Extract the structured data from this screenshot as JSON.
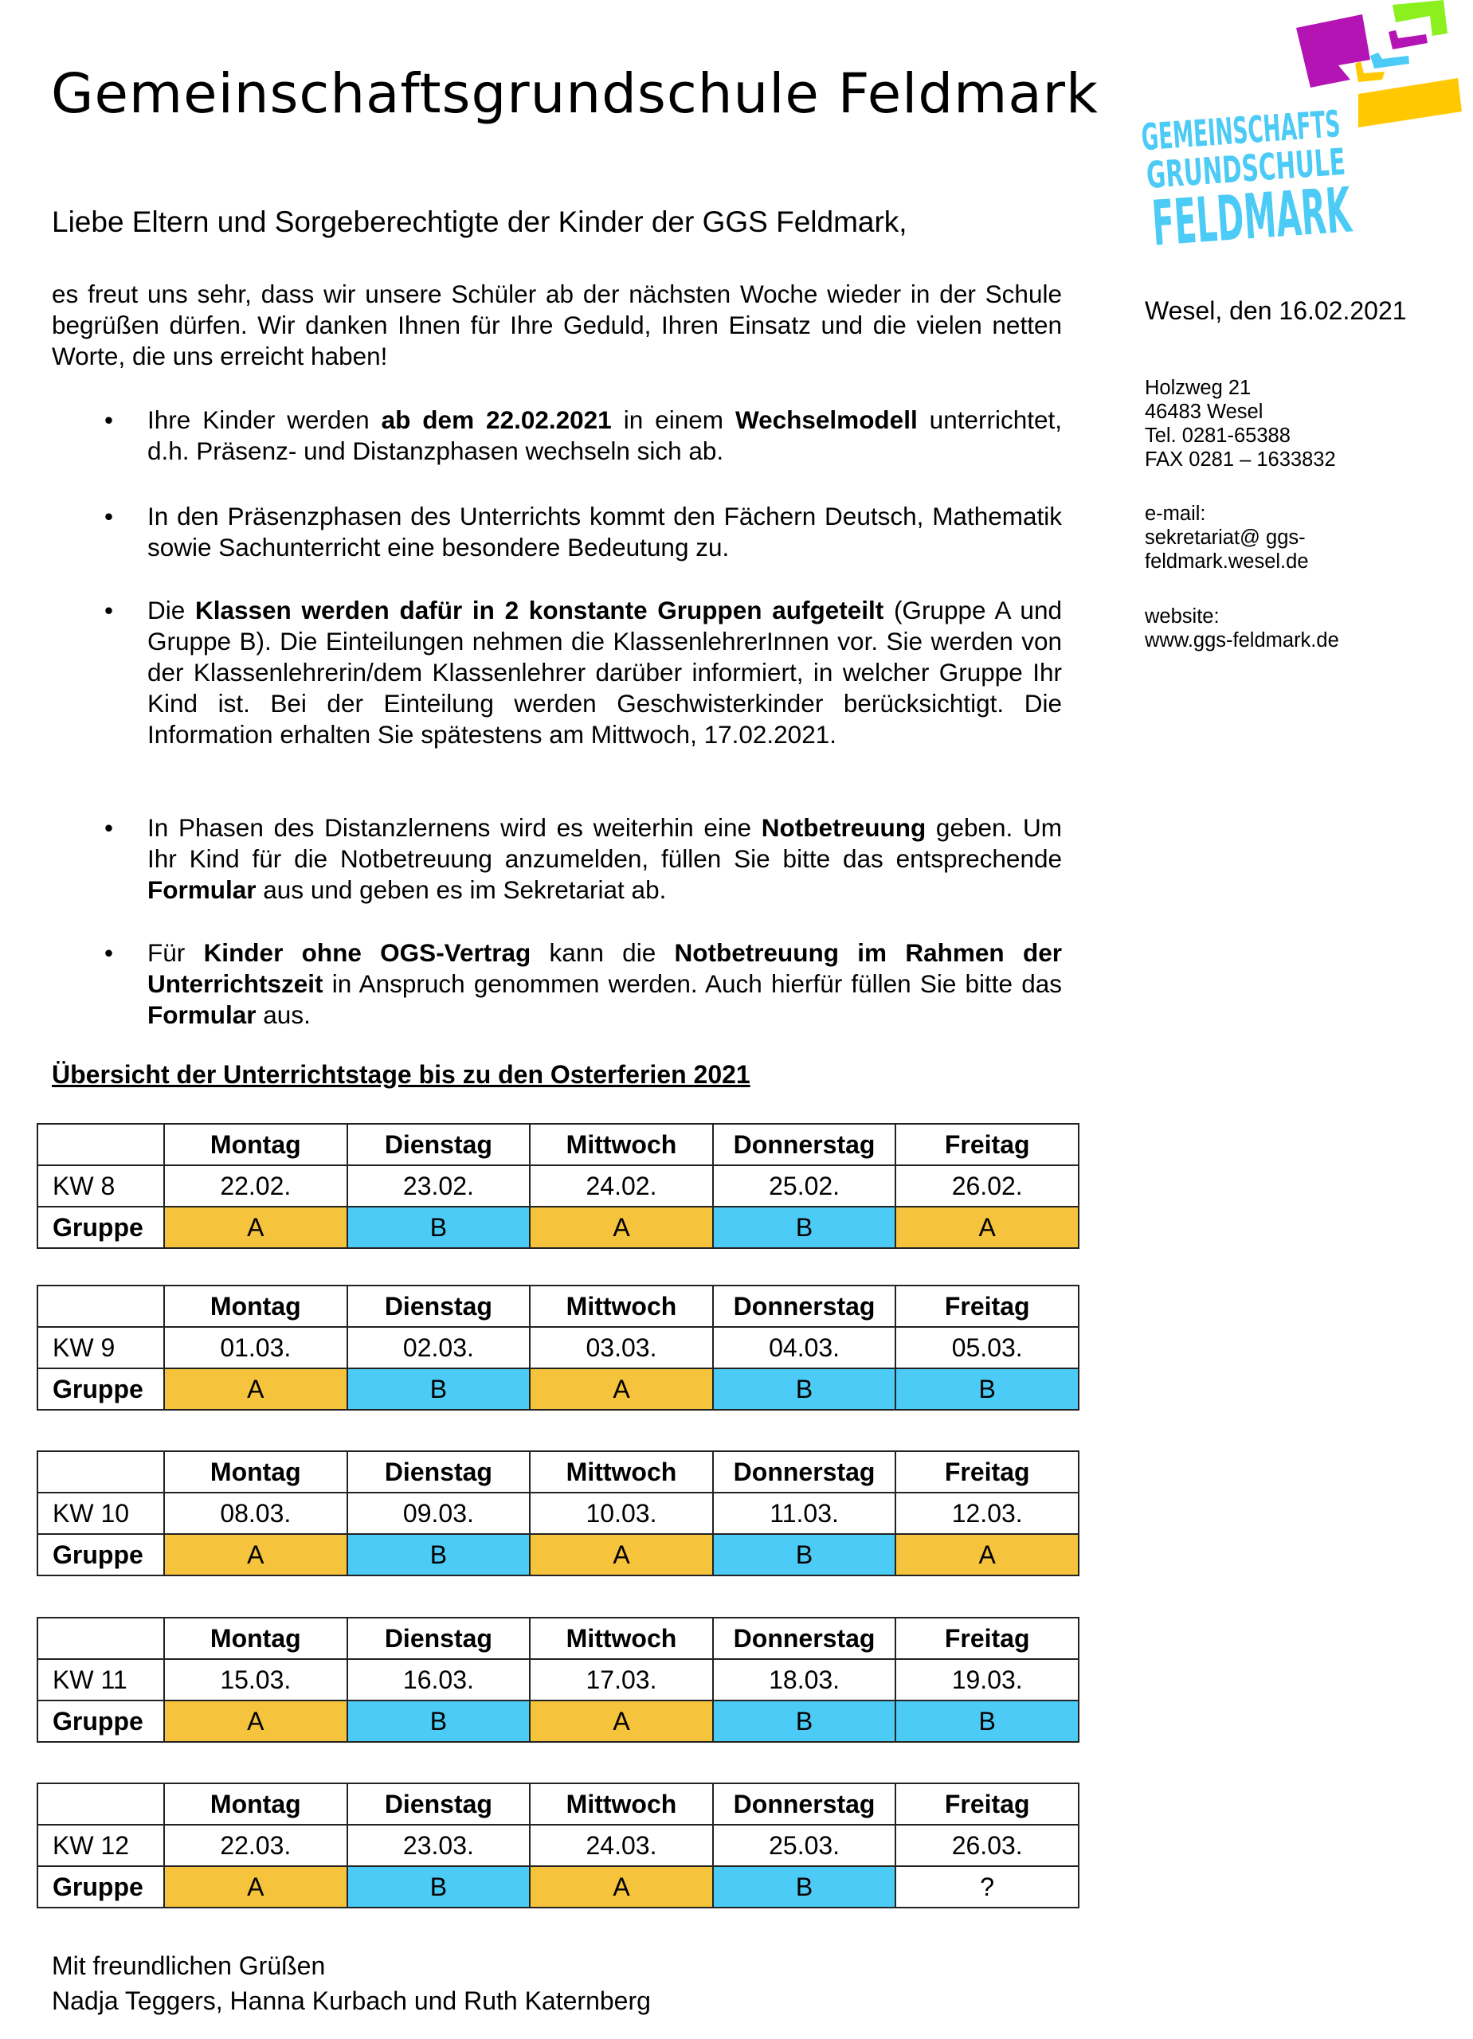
{
  "header": {
    "title": "Gemeinschaftsgrundschule Feldmark",
    "logo": {
      "lines": [
        "GEMEINSCHAFTS",
        "GRUNDSCHULE",
        "FELDMARK"
      ],
      "colors": {
        "text": "#4BCBF5",
        "purple": "#B414B4",
        "green": "#8CF01E",
        "yellow": "#FFC800"
      }
    }
  },
  "greeting": "Liebe Eltern und Sorgeberechtigte der Kinder der GGS Feldmark,",
  "intro": "es freut uns sehr, dass wir unsere Schüler ab der nächsten Woche wieder in der Schule begrüßen dürfen. Wir danken Ihnen für Ihre Geduld, Ihren Einsatz und die vielen netten Worte, die uns erreicht haben!",
  "bullets": [
    {
      "parts": [
        [
          "Ihre Kinder werden ",
          false
        ],
        [
          "ab dem 22.02.2021",
          true
        ],
        [
          " in einem ",
          false
        ],
        [
          "Wechselmodell",
          true
        ],
        [
          " unterrichtet, d.h. Präsenz- und Distanzphasen wechseln sich ab.",
          false
        ]
      ]
    },
    {
      "parts": [
        [
          "In den Präsenzphasen des Unterrichts kommt den Fächern Deutsch, Mathematik sowie Sachunterricht eine besondere Bedeutung zu.",
          false
        ]
      ]
    },
    {
      "parts": [
        [
          "Die ",
          false
        ],
        [
          "Klassen werden dafür in 2 konstante Gruppen aufgeteilt",
          true
        ],
        [
          " (Gruppe A und Gruppe B). Die Einteilungen nehmen die KlassenlehrerInnen vor. Sie werden von der Klassenlehrerin/dem Klassenlehrer darüber informiert, in welcher Gruppe Ihr Kind ist. Bei der Einteilung werden Geschwisterkinder berücksichtigt. Die Information erhalten Sie spätestens am Mittwoch, 17.02.2021.",
          false
        ]
      ]
    },
    {
      "parts": [
        [
          "In Phasen des Distanzlernens wird es weiterhin eine ",
          false
        ],
        [
          "Notbetreuung",
          true
        ],
        [
          " geben. Um Ihr Kind für die Notbetreuung anzumelden, füllen Sie bitte das entsprechende ",
          false
        ],
        [
          "Formular",
          true
        ],
        [
          " aus und geben es im Sekretariat ab.",
          false
        ]
      ]
    },
    {
      "parts": [
        [
          "Für ",
          false
        ],
        [
          "Kinder ohne OGS-Vertrag",
          true
        ],
        [
          " kann die ",
          false
        ],
        [
          "Notbetreuung im Rahmen der Unterrichtszeit",
          true
        ],
        [
          " in Anspruch genommen werden. Auch hierfür füllen Sie bitte das ",
          false
        ],
        [
          "Formular",
          true
        ],
        [
          " aus.",
          false
        ]
      ]
    }
  ],
  "overview_heading": "Übersicht der Unterrichtstage bis zu den Osterferien 2021",
  "days": [
    "Montag",
    "Dienstag",
    "Mittwoch",
    "Donnerstag",
    "Freitag"
  ],
  "group_label": "Gruppe",
  "group_colors": {
    "A": "#F5C33C",
    "B": "#4BCBF5"
  },
  "weeks": [
    {
      "kw": "KW 8",
      "dates": [
        "22.02.",
        "23.02.",
        "24.02.",
        "25.02.",
        "26.02."
      ],
      "groups": [
        "A",
        "B",
        "A",
        "B",
        "A"
      ]
    },
    {
      "kw": "KW 9",
      "dates": [
        "01.03.",
        "02.03.",
        "03.03.",
        "04.03.",
        "05.03."
      ],
      "groups": [
        "A",
        "B",
        "A",
        "B",
        "B"
      ]
    },
    {
      "kw": "KW 10",
      "dates": [
        "08.03.",
        "09.03.",
        "10.03.",
        "11.03.",
        "12.03."
      ],
      "groups": [
        "A",
        "B",
        "A",
        "B",
        "A"
      ]
    },
    {
      "kw": "KW 11",
      "dates": [
        "15.03.",
        "16.03.",
        "17.03.",
        "18.03.",
        "19.03."
      ],
      "groups": [
        "A",
        "B",
        "A",
        "B",
        "B"
      ]
    },
    {
      "kw": "KW 12",
      "dates": [
        "22.03.",
        "23.03.",
        "24.03.",
        "25.03.",
        "26.03."
      ],
      "groups": [
        "A",
        "B",
        "A",
        "B",
        "?"
      ]
    }
  ],
  "closing": {
    "line1": "Mit freundlichen Grüßen",
    "line2": "Nadja Teggers, Hanna Kurbach und Ruth Katernberg"
  },
  "sidebar": {
    "date": "Wesel, den 16.02.2021",
    "address": [
      "Holzweg 21",
      "46483 Wesel",
      "Tel. 0281-65388",
      "FAX 0281 – 1633832"
    ],
    "email_label": "e-mail:",
    "email": [
      "sekretariat@ ggs-",
      "feldmark.wesel.de"
    ],
    "website_label": "website:",
    "website": "www.ggs-feldmark.de"
  }
}
